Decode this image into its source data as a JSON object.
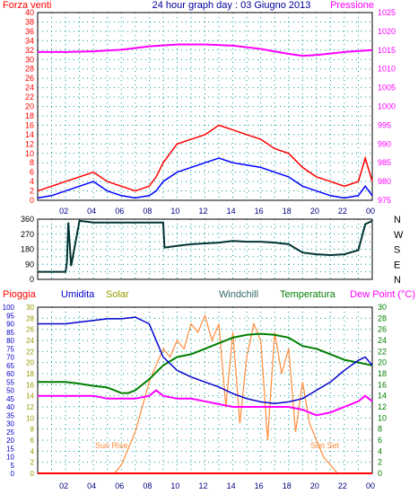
{
  "chart_data": [
    {
      "type": "line",
      "title": "24 hour graph day : 03 Giugno 2013",
      "left_label": "Forza venti",
      "right_label": "Pressione",
      "x_ticks": [
        "02",
        "04",
        "06",
        "08",
        "10",
        "12",
        "14",
        "16",
        "18",
        "20",
        "22",
        "00"
      ],
      "left_ticks": [
        "0",
        "2",
        "4",
        "6",
        "8",
        "10",
        "12",
        "14",
        "16",
        "18",
        "20",
        "22",
        "24",
        "26",
        "28",
        "30",
        "32",
        "34",
        "36",
        "38",
        "40"
      ],
      "right_ticks": [
        "975",
        "980",
        "985",
        "990",
        "995",
        "1000",
        "1005",
        "1010",
        "1015",
        "1020",
        "1025"
      ],
      "ylim_left": [
        0,
        40
      ],
      "ylim_right": [
        975,
        1025
      ],
      "xlim": [
        0,
        24
      ],
      "grid": true,
      "series": [
        {
          "role": "wind-gust",
          "color": "#ff0000",
          "axis": "left",
          "x": [
            0,
            1,
            2,
            3,
            4,
            5,
            6,
            7,
            8,
            8.5,
            9,
            10,
            11,
            12,
            13,
            14,
            15,
            16,
            17,
            18,
            19,
            20,
            21,
            22,
            23,
            23.5,
            24
          ],
          "y": [
            2,
            3,
            4,
            5,
            6,
            4,
            3,
            2,
            3,
            5,
            8,
            12,
            13,
            14,
            16,
            15,
            14,
            13,
            11,
            10,
            7,
            5,
            4,
            3,
            4,
            9,
            4
          ]
        },
        {
          "role": "wind-speed",
          "color": "#0000ff",
          "axis": "left",
          "x": [
            0,
            1,
            2,
            3,
            4,
            5,
            6,
            7,
            8,
            8.5,
            9,
            10,
            11,
            12,
            13,
            14,
            15,
            16,
            17,
            18,
            19,
            20,
            21,
            22,
            23,
            23.5,
            24
          ],
          "y": [
            0.5,
            1,
            2,
            3,
            4,
            2,
            1,
            0.5,
            1,
            2,
            4,
            6,
            7,
            8,
            9,
            8,
            7.5,
            7,
            6,
            5,
            3,
            2,
            1,
            0.5,
            1,
            3,
            1
          ]
        },
        {
          "role": "pressure",
          "color": "#ff00ff",
          "axis": "right",
          "x": [
            0,
            2,
            4,
            6,
            8,
            10,
            12,
            14,
            16,
            18,
            19,
            20,
            22,
            24
          ],
          "y": [
            1014.5,
            1014.5,
            1014.7,
            1015.1,
            1016,
            1016.5,
            1016.5,
            1016.2,
            1015.3,
            1014,
            1013.5,
            1013.7,
            1014.5,
            1015
          ]
        }
      ]
    },
    {
      "type": "line",
      "title": "",
      "right_labels": [
        "N",
        "W",
        "S",
        "E",
        "N"
      ],
      "left_ticks": [
        "0",
        "45",
        "90",
        "135",
        "180",
        "225",
        "270",
        "315",
        "360"
      ],
      "ylim": [
        0,
        360
      ],
      "xlim": [
        0,
        24
      ],
      "grid": true,
      "series": [
        {
          "role": "wind-direction",
          "color": "#003333",
          "x": [
            0,
            2,
            2.1,
            2.2,
            2.4,
            3,
            3.5,
            4,
            5,
            6,
            8,
            9,
            9.1,
            10,
            11,
            12,
            13,
            14,
            15,
            16,
            17,
            18,
            19,
            20,
            21,
            22,
            23,
            23.5,
            24
          ],
          "y": [
            45,
            45,
            100,
            340,
            80,
            350,
            345,
            340,
            340,
            340,
            340,
            340,
            190,
            200,
            210,
            215,
            220,
            230,
            225,
            225,
            220,
            210,
            160,
            150,
            145,
            150,
            175,
            330,
            350
          ]
        }
      ]
    },
    {
      "type": "line",
      "title": "",
      "left_label": "Pioggia",
      "labels": [
        "Umidita",
        "Solar",
        "Windchill",
        "Temperatura"
      ],
      "right_label": "Dew Point (°C)",
      "annotations": [
        "Sun Rise",
        "Sun Set"
      ],
      "left_ticks_outer": [
        "0",
        "5",
        "10",
        "15",
        "20",
        "25",
        "30",
        "35",
        "40",
        "45",
        "50",
        "55",
        "60",
        "65",
        "70",
        "75",
        "80",
        "85",
        "90",
        "95",
        "100"
      ],
      "left_ticks_inner": [
        "0",
        "2",
        "4",
        "6",
        "8",
        "10",
        "12",
        "14",
        "16",
        "18",
        "20",
        "22",
        "24",
        "26",
        "28",
        "30"
      ],
      "right_ticks": [
        "0",
        "2",
        "4",
        "6",
        "8",
        "10",
        "12",
        "14",
        "16",
        "18",
        "20",
        "22",
        "24",
        "26",
        "28",
        "30"
      ],
      "ylim_outer": [
        0,
        100
      ],
      "ylim_inner": [
        0,
        30
      ],
      "xlim": [
        0,
        24
      ],
      "grid": true,
      "series": [
        {
          "role": "humidity",
          "color": "#0000cc",
          "axis": "outer",
          "x": [
            0,
            1,
            2,
            3,
            4,
            5,
            6,
            7,
            8,
            8.5,
            9,
            10,
            11,
            12,
            13,
            14,
            15,
            16,
            17,
            18,
            19,
            20,
            21,
            22,
            23,
            23.5,
            24
          ],
          "y": [
            90,
            90,
            90,
            91,
            92,
            93,
            93,
            94,
            90,
            80,
            70,
            62,
            58,
            55,
            52,
            48,
            45,
            43,
            42,
            43,
            45,
            50,
            55,
            62,
            68,
            70,
            65
          ]
        },
        {
          "role": "temperature",
          "color": "#007f00",
          "axis": "inner",
          "x": [
            0,
            1,
            2,
            3,
            4,
            5,
            6,
            6.5,
            7,
            8,
            9,
            10,
            11,
            12,
            13,
            14,
            15,
            16,
            17,
            18,
            19,
            20,
            21,
            22,
            23,
            24
          ],
          "y": [
            16.5,
            16.5,
            16.5,
            16.2,
            15.8,
            15.5,
            14.5,
            14.5,
            15,
            17,
            19.5,
            21,
            21.5,
            22.5,
            23.5,
            24.5,
            25,
            25.2,
            25,
            24.5,
            23,
            22.5,
            21.5,
            20.5,
            20,
            19.5
          ]
        },
        {
          "role": "dew-point",
          "color": "#ff00ff",
          "axis": "inner",
          "x": [
            0,
            1,
            2,
            3,
            4,
            5,
            6,
            7,
            8,
            8.5,
            9,
            10,
            11,
            12,
            13,
            14,
            15,
            16,
            17,
            18,
            19,
            20,
            21,
            22,
            23,
            23.5,
            24
          ],
          "y": [
            14,
            14,
            14,
            14,
            14,
            13.5,
            13.5,
            13.5,
            14,
            15,
            14,
            13.5,
            13.5,
            13,
            12.5,
            12,
            12,
            12,
            12,
            12,
            11.5,
            10.5,
            11,
            12,
            13,
            14,
            13
          ]
        },
        {
          "role": "solar",
          "color": "#ff8c3a",
          "axis": "outer",
          "x": [
            0,
            5.5,
            6,
            6.5,
            7,
            7.5,
            8,
            8.5,
            9,
            9.5,
            10,
            10.5,
            11,
            11.5,
            12,
            12.5,
            13,
            13.5,
            14,
            14.5,
            15,
            15.5,
            16,
            16.5,
            17,
            17.5,
            18,
            18.5,
            19,
            19.5,
            20,
            20.5,
            21,
            21.5,
            24
          ],
          "y": [
            0,
            0,
            5,
            15,
            25,
            40,
            55,
            65,
            75,
            70,
            80,
            75,
            90,
            85,
            95,
            80,
            90,
            40,
            85,
            30,
            70,
            90,
            80,
            20,
            85,
            60,
            75,
            25,
            55,
            30,
            20,
            10,
            5,
            0,
            0
          ]
        },
        {
          "role": "rain",
          "color": "#ff0000",
          "axis": "outer",
          "x": [
            0,
            24
          ],
          "y": [
            0,
            0
          ]
        }
      ]
    }
  ]
}
